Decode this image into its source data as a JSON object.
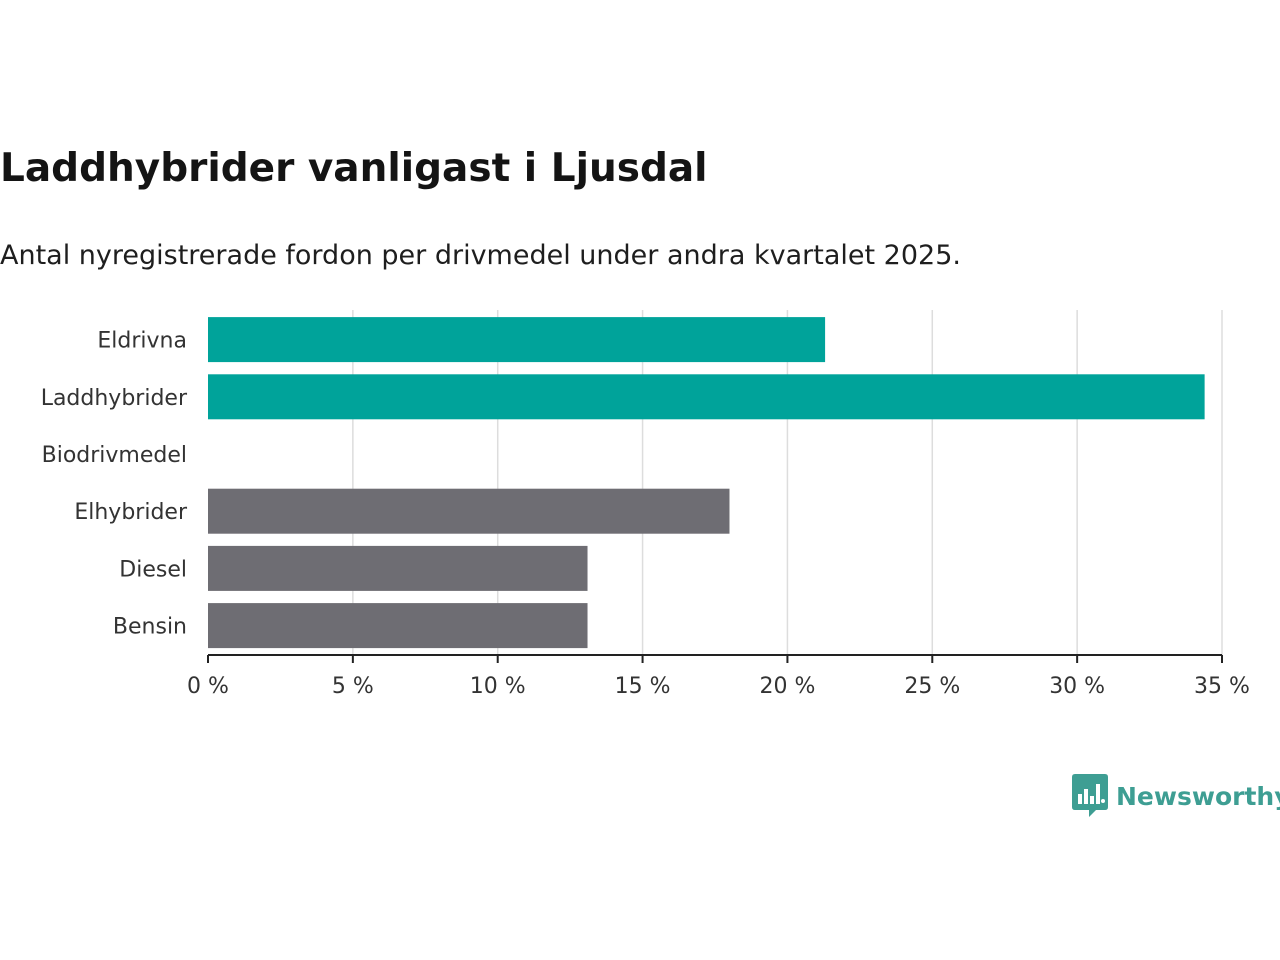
{
  "header": {
    "title": "Laddhybrider vanligast i Ljusdal",
    "subtitle": "Antal nyregistrerade fordon per drivmedel under andra kvartalet 2025."
  },
  "brand": {
    "name": "Newsworthy",
    "icon": "newsworthy-chart-bubble-icon",
    "color": "#3e9e93"
  },
  "colors": {
    "highlight": "#00a39a",
    "other": "#6e6d73",
    "grid": "#dddddd",
    "axis": "#222222"
  },
  "chart_data": {
    "type": "bar",
    "orientation": "horizontal",
    "title": "Laddhybrider vanligast i Ljusdal",
    "subtitle": "Antal nyregistrerade fordon per drivmedel under andra kvartalet 2025.",
    "categories": [
      "Eldrivna",
      "Laddhybrider",
      "Biodrivmedel",
      "Elhybrider",
      "Diesel",
      "Bensin"
    ],
    "values": [
      21.3,
      34.4,
      0,
      18.0,
      13.1,
      13.1
    ],
    "highlighted": [
      true,
      true,
      false,
      false,
      false,
      false
    ],
    "unit": "%",
    "xlim": [
      0,
      35
    ],
    "xticks": [
      0,
      5,
      10,
      15,
      20,
      25,
      30,
      35
    ],
    "xtick_labels": [
      "0 %",
      "5 %",
      "10 %",
      "15 %",
      "20 %",
      "25 %",
      "30 %",
      "35 %"
    ],
    "grid": true,
    "legend": "none"
  }
}
